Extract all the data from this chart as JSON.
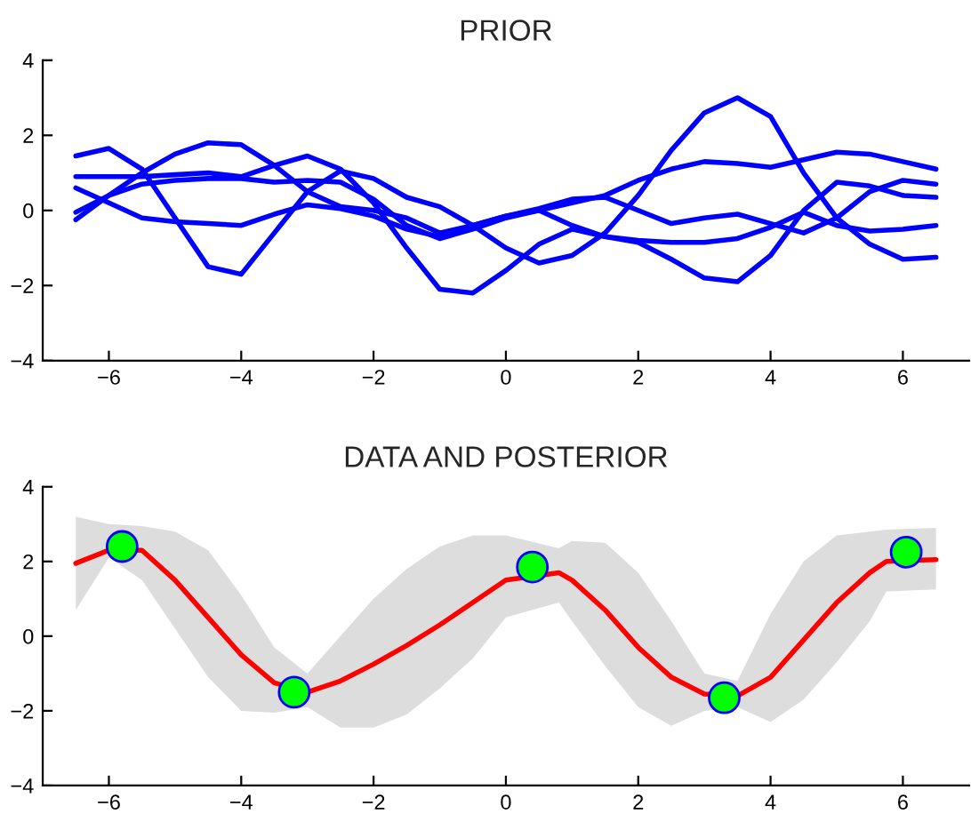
{
  "chart_data": [
    {
      "type": "line",
      "title": "PRIOR",
      "x": [
        -6.5,
        -6,
        -5.5,
        -5,
        -4.5,
        -4,
        -3.5,
        -3,
        -2.5,
        -2,
        -1.5,
        -1,
        -0.5,
        0,
        0.5,
        1,
        1.5,
        2,
        2.5,
        3,
        3.5,
        4,
        4.5,
        5,
        5.5,
        6,
        6.5
      ],
      "series": [
        {
          "color": "#0000ff",
          "values": [
            1.45,
            1.65,
            1.1,
            -0.2,
            -1.5,
            -1.7,
            -0.6,
            0.5,
            1.05,
            0.85,
            0.35,
            0.1,
            -0.4,
            -1.0,
            -1.4,
            -1.2,
            -0.6,
            0.4,
            1.6,
            2.6,
            3.0,
            2.5,
            1.0,
            -0.2,
            -0.9,
            -1.3,
            -1.25
          ]
        },
        {
          "color": "#0000ff",
          "values": [
            -0.25,
            0.4,
            1.0,
            1.5,
            1.8,
            1.75,
            1.2,
            0.5,
            0.1,
            0.0,
            -0.2,
            -0.6,
            -0.4,
            -0.15,
            0.05,
            0.3,
            0.35,
            0.0,
            -0.35,
            -0.2,
            -0.1,
            -0.35,
            -0.6,
            -0.2,
            0.5,
            0.8,
            0.7
          ]
        },
        {
          "color": "#0000ff",
          "values": [
            0.9,
            0.9,
            0.9,
            0.95,
            1.0,
            0.9,
            1.2,
            1.45,
            1.1,
            0.2,
            -1.0,
            -2.1,
            -2.2,
            -1.6,
            -0.9,
            -0.5,
            -0.7,
            -0.8,
            -0.85,
            -0.85,
            -0.75,
            -0.45,
            -0.05,
            -0.4,
            -0.55,
            -0.5,
            -0.4
          ]
        },
        {
          "color": "#0000ff",
          "values": [
            -0.05,
            0.4,
            0.7,
            0.8,
            0.85,
            0.85,
            0.75,
            0.8,
            0.75,
            0.3,
            -0.4,
            -0.75,
            -0.5,
            -0.2,
            0.0,
            0.2,
            0.4,
            0.8,
            1.1,
            1.3,
            1.25,
            1.15,
            1.35,
            1.55,
            1.5,
            1.3,
            1.1
          ]
        },
        {
          "color": "#0000ff",
          "values": [
            0.6,
            0.2,
            -0.2,
            -0.3,
            -0.35,
            -0.4,
            -0.1,
            0.15,
            0.05,
            -0.15,
            -0.5,
            -0.7,
            -0.4,
            -0.15,
            0.0,
            -0.4,
            -0.7,
            -0.85,
            -1.3,
            -1.8,
            -1.9,
            -1.2,
            0.0,
            0.75,
            0.65,
            0.4,
            0.35
          ]
        }
      ],
      "xlim": [
        -7,
        7
      ],
      "xticks": [
        -6,
        -4,
        -2,
        0,
        2,
        4,
        6
      ],
      "ylim": [
        -4,
        4
      ],
      "yticks": [
        -4,
        -2,
        0,
        2,
        4
      ],
      "grid": false
    },
    {
      "type": "line",
      "title": "DATA AND POSTERIOR",
      "x": [
        -6.5,
        -6,
        -5.5,
        -5,
        -4.5,
        -4,
        -3.5,
        -3,
        -2.5,
        -2,
        -1.5,
        -1,
        -0.5,
        0,
        0.8,
        1,
        1.5,
        2,
        2.5,
        3,
        3.5,
        4,
        4.5,
        5,
        5.5,
        5.75,
        6.5
      ],
      "series": [
        {
          "color": "#ff0000",
          "values": [
            1.95,
            2.3,
            2.3,
            1.5,
            0.5,
            -0.5,
            -1.25,
            -1.5,
            -1.2,
            -0.75,
            -0.25,
            0.3,
            0.9,
            1.5,
            1.7,
            1.5,
            0.7,
            -0.3,
            -1.1,
            -1.55,
            -1.6,
            -1.1,
            -0.1,
            0.9,
            1.7,
            2.0,
            2.05
          ],
          "lower": [
            0.7,
            2.1,
            1.5,
            0.2,
            -1.1,
            -2.0,
            -2.05,
            -1.9,
            -2.45,
            -2.45,
            -2.1,
            -1.4,
            -0.6,
            0.5,
            0.9,
            0.4,
            -0.8,
            -1.9,
            -2.4,
            -2.0,
            -1.9,
            -2.3,
            -1.7,
            -0.7,
            0.4,
            1.2,
            1.25
          ],
          "upper": [
            3.2,
            3.0,
            2.95,
            2.8,
            2.3,
            1.1,
            -0.3,
            -1.0,
            0.0,
            1.0,
            1.8,
            2.4,
            2.7,
            2.7,
            2.35,
            2.55,
            2.5,
            1.7,
            0.4,
            -1.0,
            -1.2,
            0.6,
            2.0,
            2.7,
            2.8,
            2.85,
            2.9
          ]
        },
        {
          "type": "scatter",
          "color": "#00ff00",
          "x": [
            -5.8,
            -3.2,
            0.4,
            3.3,
            6.05
          ],
          "values": [
            2.4,
            -1.5,
            1.85,
            -1.65,
            2.25
          ],
          "marker": "circle"
        }
      ],
      "xlim": [
        -7,
        7
      ],
      "xticks": [
        -6,
        -4,
        -2,
        0,
        2,
        4,
        6
      ],
      "ylim": [
        -4,
        4
      ],
      "yticks": [
        -4,
        -2,
        0,
        2,
        4
      ],
      "grid": false
    }
  ]
}
